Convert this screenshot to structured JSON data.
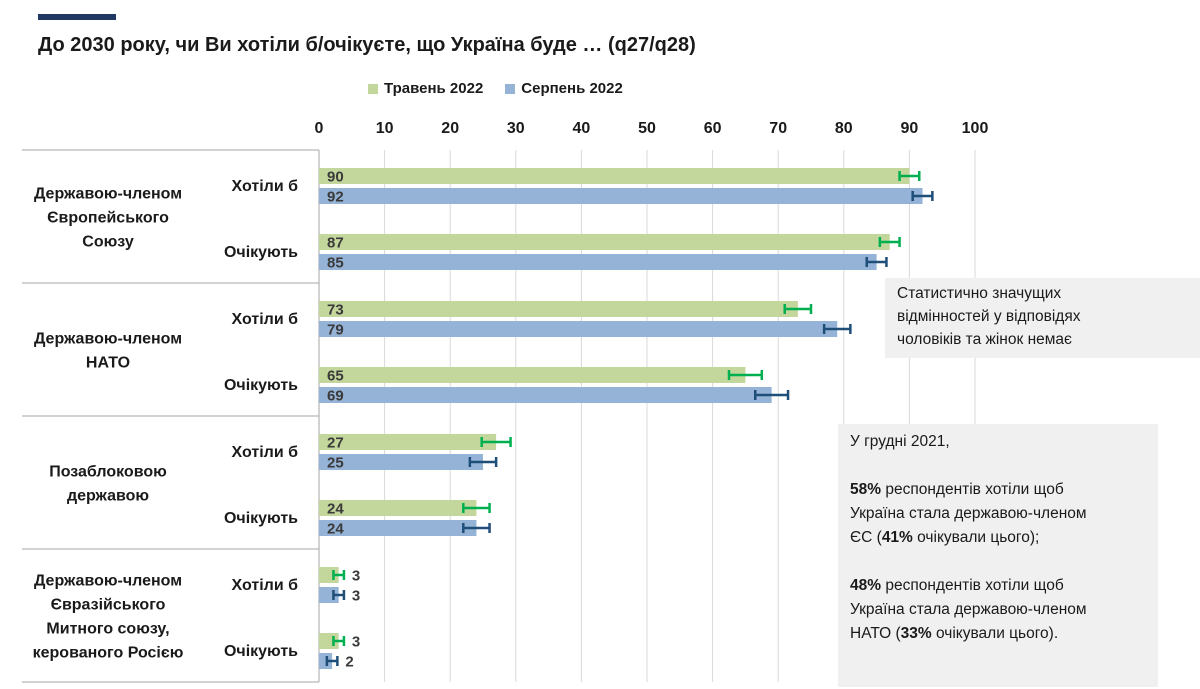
{
  "title": "До 2030 року, чи Ви хотіли б/очікуєте, що Україна буде … (q27/q28)",
  "legend": [
    {
      "label": "Травень 2022",
      "color": "#c3d69b"
    },
    {
      "label": "Серпень 2022",
      "color": "#95b3d7"
    }
  ],
  "colors": {
    "accent": "#1f3864",
    "may_err": "#00b050",
    "aug_err": "#1f4e79",
    "grid": "#d9d9d9"
  },
  "chart_data": {
    "type": "bar",
    "orientation": "horizontal",
    "xlim": [
      0,
      100
    ],
    "ticks": [
      "0",
      "10",
      "20",
      "30",
      "40",
      "50",
      "60",
      "70",
      "80",
      "90",
      "100"
    ],
    "series_names": [
      "Травень 2022",
      "Серпень 2022"
    ],
    "groups": [
      {
        "label": "Державою-членом Європейського Союзу",
        "label_lines": [
          "Державою-членом",
          "Європейського",
          "Союзу"
        ],
        "rows": [
          {
            "label": "Хотіли б",
            "values": [
              90,
              92
            ],
            "errors": [
              1.5,
              1.5
            ]
          },
          {
            "label": "Очікують",
            "values": [
              87,
              85
            ],
            "errors": [
              1.5,
              1.5
            ]
          }
        ]
      },
      {
        "label": "Державою-членом НАТО",
        "label_lines": [
          "Державою-членом",
          "НАТО"
        ],
        "rows": [
          {
            "label": "Хотіли б",
            "values": [
              73,
              79
            ],
            "errors": [
              2,
              2
            ]
          },
          {
            "label": "Очікують",
            "values": [
              65,
              69
            ],
            "errors": [
              2.5,
              2.5
            ]
          }
        ]
      },
      {
        "label": "Позаблоковою державою",
        "label_lines": [
          "Позаблоковою",
          "державою"
        ],
        "rows": [
          {
            "label": "Хотіли б",
            "values": [
              27,
              25
            ],
            "errors": [
              2.2,
              2
            ]
          },
          {
            "label": "Очікують",
            "values": [
              24,
              24
            ],
            "errors": [
              2,
              2
            ]
          }
        ]
      },
      {
        "label": "Державою-членом Євразійського Митного союзу, керованого Росією",
        "label_lines": [
          "Державою-членом",
          "Євразійського",
          "Митного союзу,",
          "керованого Росією"
        ],
        "rows": [
          {
            "label": "Хотіли б",
            "values": [
              3,
              3
            ],
            "errors": [
              0.8,
              0.8
            ]
          },
          {
            "label": "Очікують",
            "values": [
              3,
              2
            ],
            "errors": [
              0.8,
              0.8
            ]
          }
        ]
      }
    ]
  },
  "notes": {
    "note1_lines": [
      "Статистично значущих",
      "відмінностей у відповідях",
      "чоловіків та жінок немає"
    ],
    "note2": {
      "line1": "У грудні 2021,",
      "p1_pct": "58%",
      "p1_a": " респондентів хотіли щоб",
      "p1_b": "Україна стала державою-членом",
      "p1_c1": "ЄС (",
      "p1_pct2": "41%",
      "p1_c2": " очікували цього);",
      "p2_pct": "48%",
      "p2_a": " респондентів хотіли щоб",
      "p2_b": "Україна стала державою-членом",
      "p2_c1": "НАТО (",
      "p2_pct2": "33%",
      "p2_c2": " очікували цього)."
    }
  }
}
